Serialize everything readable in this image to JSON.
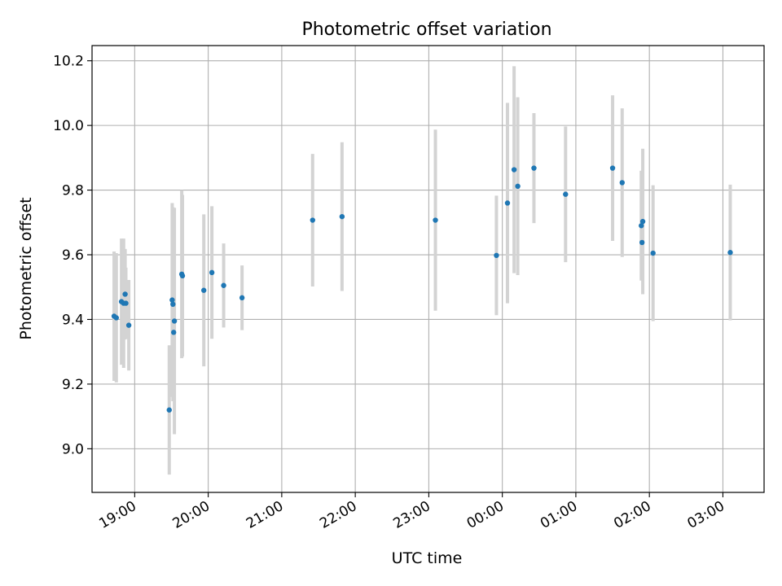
{
  "chart_data": {
    "type": "scatter",
    "title": "Photometric offset variation",
    "xlabel": "UTC time",
    "ylabel": "Photometric offset",
    "grid": true,
    "x_unit": "hours after 18:00 UTC",
    "xlim": [
      18.42,
      27.56
    ],
    "ylim": [
      8.865,
      10.247
    ],
    "x_ticks": [
      {
        "value": 19,
        "label": "19:00"
      },
      {
        "value": 20,
        "label": "20:00"
      },
      {
        "value": 21,
        "label": "21:00"
      },
      {
        "value": 22,
        "label": "22:00"
      },
      {
        "value": 23,
        "label": "23:00"
      },
      {
        "value": 24,
        "label": "00:00"
      },
      {
        "value": 25,
        "label": "01:00"
      },
      {
        "value": 26,
        "label": "02:00"
      },
      {
        "value": 27,
        "label": "03:00"
      }
    ],
    "y_ticks": [
      {
        "value": 9.0,
        "label": "9.0"
      },
      {
        "value": 9.2,
        "label": "9.2"
      },
      {
        "value": 9.4,
        "label": "9.4"
      },
      {
        "value": 9.6,
        "label": "9.6"
      },
      {
        "value": 9.8,
        "label": "9.8"
      },
      {
        "value": 10.0,
        "label": "10.0"
      },
      {
        "value": 10.2,
        "label": "10.2"
      }
    ],
    "marker_color": "#1f77b4",
    "errorbar_color": "#d3d3d3",
    "points": [
      {
        "x": 18.72,
        "y": 9.41,
        "yerr": 0.2
      },
      {
        "x": 18.75,
        "y": 9.405,
        "yerr": 0.2
      },
      {
        "x": 18.82,
        "y": 9.455,
        "yerr": 0.195
      },
      {
        "x": 18.85,
        "y": 9.45,
        "yerr": 0.2
      },
      {
        "x": 18.87,
        "y": 9.478,
        "yerr": 0.14
      },
      {
        "x": 18.88,
        "y": 9.45,
        "yerr": 0.11
      },
      {
        "x": 18.92,
        "y": 9.382,
        "yerr": 0.14
      },
      {
        "x": 19.47,
        "y": 9.12,
        "yerr": 0.2
      },
      {
        "x": 19.51,
        "y": 9.46,
        "yerr": 0.3
      },
      {
        "x": 19.52,
        "y": 9.447,
        "yerr": 0.3
      },
      {
        "x": 19.53,
        "y": 9.36,
        "yerr": 0.14
      },
      {
        "x": 19.54,
        "y": 9.395,
        "yerr": 0.35
      },
      {
        "x": 19.64,
        "y": 9.54,
        "yerr": 0.26
      },
      {
        "x": 19.65,
        "y": 9.535,
        "yerr": 0.25
      },
      {
        "x": 19.94,
        "y": 9.49,
        "yerr": 0.235
      },
      {
        "x": 20.05,
        "y": 9.545,
        "yerr": 0.205
      },
      {
        "x": 20.21,
        "y": 9.505,
        "yerr": 0.13
      },
      {
        "x": 20.46,
        "y": 9.467,
        "yerr": 0.1
      },
      {
        "x": 21.42,
        "y": 9.707,
        "yerr": 0.205
      },
      {
        "x": 21.82,
        "y": 9.718,
        "yerr": 0.23
      },
      {
        "x": 23.09,
        "y": 9.707,
        "yerr": 0.28
      },
      {
        "x": 23.92,
        "y": 9.598,
        "yerr": 0.185
      },
      {
        "x": 24.07,
        "y": 9.76,
        "yerr": 0.31
      },
      {
        "x": 24.16,
        "y": 9.863,
        "yerr": 0.32
      },
      {
        "x": 24.21,
        "y": 9.812,
        "yerr": 0.275
      },
      {
        "x": 24.43,
        "y": 9.868,
        "yerr": 0.17
      },
      {
        "x": 24.86,
        "y": 9.787,
        "yerr": 0.21
      },
      {
        "x": 25.5,
        "y": 9.868,
        "yerr": 0.225
      },
      {
        "x": 25.63,
        "y": 9.823,
        "yerr": 0.23
      },
      {
        "x": 25.89,
        "y": 9.69,
        "yerr": 0.17
      },
      {
        "x": 25.9,
        "y": 9.638,
        "yerr": 0.115
      },
      {
        "x": 25.91,
        "y": 9.703,
        "yerr": 0.225
      },
      {
        "x": 26.05,
        "y": 9.605,
        "yerr": 0.21
      },
      {
        "x": 27.1,
        "y": 9.607,
        "yerr": 0.21
      }
    ]
  }
}
